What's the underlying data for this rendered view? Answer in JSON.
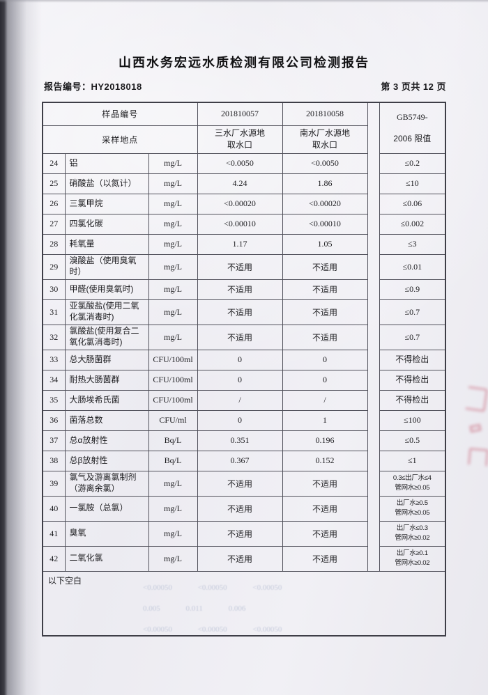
{
  "page": {
    "title": "山西水务宏远水质检测有限公司检测报告",
    "report_no": "报告编号：HY2018018",
    "page_indicator": "第 3 页共 12 页"
  },
  "table": {
    "header": {
      "sample_id_label": "样品编号",
      "sampling_site_label": "采样地点",
      "sample1_id": "201810057",
      "sample2_id": "201810058",
      "sample1_site": "三水厂水源地\n取水口",
      "sample2_site": "南水厂水源地\n取水口",
      "limit_header_line1": "GB5749-",
      "limit_header_line2": "2006 限值"
    },
    "rows": [
      {
        "no": "24",
        "name": "铝",
        "unit": "mg/L",
        "v1": "<0.0050",
        "v2": "<0.0050",
        "limit": "≤0.2"
      },
      {
        "no": "25",
        "name": "硝酸盐（以氮计）",
        "unit": "mg/L",
        "v1": "4.24",
        "v2": "1.86",
        "limit": "≤10"
      },
      {
        "no": "26",
        "name": "三氯甲烷",
        "unit": "mg/L",
        "v1": "<0.00020",
        "v2": "<0.00020",
        "limit": "≤0.06"
      },
      {
        "no": "27",
        "name": "四氯化碳",
        "unit": "mg/L",
        "v1": "<0.00010",
        "v2": "<0.00010",
        "limit": "≤0.002"
      },
      {
        "no": "28",
        "name": "耗氧量",
        "unit": "mg/L",
        "v1": "1.17",
        "v2": "1.05",
        "limit": "≤3"
      },
      {
        "no": "29",
        "name": "溴酸盐（使用臭氧时）",
        "unit": "mg/L",
        "v1": "不适用",
        "v2": "不适用",
        "limit": "≤0.01"
      },
      {
        "no": "30",
        "name": "甲醛(使用臭氧时)",
        "unit": "mg/L",
        "v1": "不适用",
        "v2": "不适用",
        "limit": "≤0.9"
      },
      {
        "no": "31",
        "name": "亚氯酸盐(使用二氧化氯消毒时)",
        "unit": "mg/L",
        "v1": "不适用",
        "v2": "不适用",
        "limit": "≤0.7"
      },
      {
        "no": "32",
        "name": "氯酸盐(使用复合二氧化氯消毒时)",
        "unit": "mg/L",
        "v1": "不适用",
        "v2": "不适用",
        "limit": "≤0.7"
      },
      {
        "no": "33",
        "name": "总大肠菌群",
        "unit": "CFU/100ml",
        "v1": "0",
        "v2": "0",
        "limit": "不得检出"
      },
      {
        "no": "34",
        "name": "耐热大肠菌群",
        "unit": "CFU/100ml",
        "v1": "0",
        "v2": "0",
        "limit": "不得检出"
      },
      {
        "no": "35",
        "name": "大肠埃希氏菌",
        "unit": "CFU/100ml",
        "v1": "/",
        "v2": "/",
        "limit": "不得检出"
      },
      {
        "no": "36",
        "name": "菌落总数",
        "unit": "CFU/ml",
        "v1": "0",
        "v2": "1",
        "limit": "≤100"
      },
      {
        "no": "37",
        "name": "总α放射性",
        "unit": "Bq/L",
        "v1": "0.351",
        "v2": "0.196",
        "limit": "≤0.5"
      },
      {
        "no": "38",
        "name": "总β放射性",
        "unit": "Bq/L",
        "v1": "0.367",
        "v2": "0.152",
        "limit": "≤1"
      },
      {
        "no": "39",
        "name": "氯气及游离氯制剂\n（游离余氯）",
        "unit": "mg/L",
        "v1": "不适用",
        "v2": "不适用",
        "limit": "0.3≤出厂水≤4\n管网水≥0.05"
      },
      {
        "no": "40",
        "name": "一氯胺（总氯）",
        "unit": "mg/L",
        "v1": "不适用",
        "v2": "不适用",
        "limit": "出厂水≥0.5\n管网水≥0.05"
      },
      {
        "no": "41",
        "name": "臭氧",
        "unit": "mg/L",
        "v1": "不适用",
        "v2": "不适用",
        "limit": "出厂水≤0.3\n管网水≥0.02"
      },
      {
        "no": "42",
        "name": "二氧化氯",
        "unit": "mg/L",
        "v1": "不适用",
        "v2": "不适用",
        "limit": "出厂水≥0.1\n管网水≥0.02"
      }
    ],
    "footer_note": "以下空白"
  },
  "artifacts": {
    "bleed_rows": [
      "<0.00050   <0.00050   <0.00050",
      "0.005   0.011   0.006",
      "<0.00050   <0.00050   <0.00050"
    ]
  }
}
